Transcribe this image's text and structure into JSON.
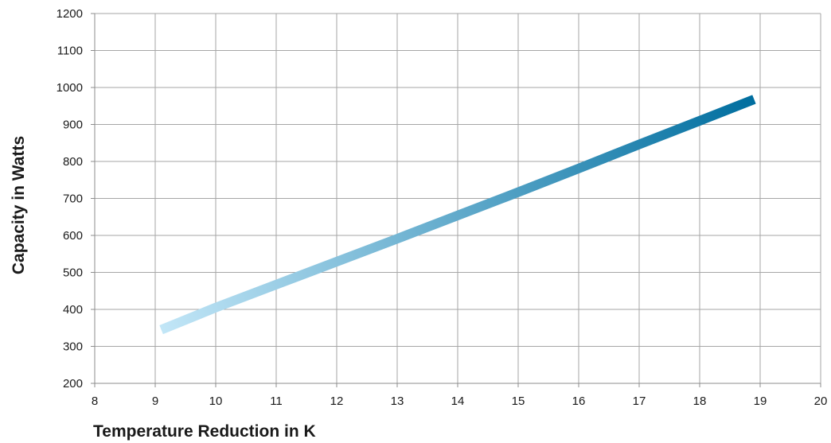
{
  "chart_data": {
    "type": "line",
    "xlabel": "Temperature Reduction in K",
    "ylabel": "Capacity in Watts",
    "xlim": [
      8,
      20
    ],
    "ylim": [
      200,
      1200
    ],
    "x_ticks": [
      8,
      9,
      10,
      11,
      12,
      13,
      14,
      15,
      16,
      17,
      18,
      19,
      20
    ],
    "y_ticks": [
      200,
      300,
      400,
      500,
      600,
      700,
      800,
      900,
      1000,
      1100,
      1200
    ],
    "grid": true,
    "series": [
      {
        "x": [
          9.1,
          10,
          11,
          12,
          13,
          14,
          15,
          16,
          17,
          18,
          18.9
        ],
        "y": [
          345,
          405,
          467,
          529,
          591,
          654,
          717,
          781,
          846,
          910,
          968
        ],
        "color_start": "#c2e6f7",
        "color_end": "#006e9f"
      }
    ]
  }
}
